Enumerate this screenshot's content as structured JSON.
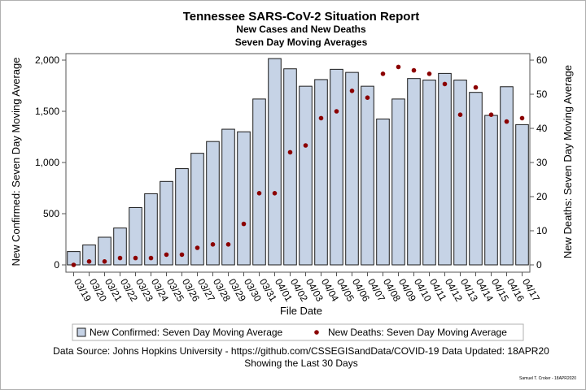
{
  "chart_data": {
    "type": "bar",
    "title": "Tennessee SARS-CoV-2 Situation Report",
    "subtitles": [
      "New Cases and New Deaths",
      "Seven Day Moving Averages"
    ],
    "xlabel": "File Date",
    "ylabel_left": "New Confirmed: Seven Day Moving Average",
    "ylabel_right": "New Deaths: Seven Day Moving Average",
    "ylim_left": [
      0,
      2000
    ],
    "ylim_right": [
      0,
      60
    ],
    "left_ticks": [
      0,
      500,
      1000,
      1500,
      2000
    ],
    "left_tick_labels": [
      "0",
      "500",
      "1,000",
      "1,500",
      "2,000"
    ],
    "right_ticks": [
      0,
      10,
      20,
      30,
      40,
      50,
      60
    ],
    "right_tick_labels": [
      "0",
      "10",
      "20",
      "30",
      "40",
      "50",
      "60"
    ],
    "categories": [
      "03/19",
      "03/20",
      "03/21",
      "03/22",
      "03/23",
      "03/24",
      "03/25",
      "03/26",
      "03/27",
      "03/28",
      "03/29",
      "03/30",
      "03/31",
      "04/01",
      "04/02",
      "04/03",
      "04/04",
      "04/05",
      "04/06",
      "04/07",
      "04/08",
      "04/09",
      "04/10",
      "04/11",
      "04/12",
      "04/13",
      "04/14",
      "04/15",
      "04/16",
      "04/17"
    ],
    "series": [
      {
        "name": "New Confirmed: Seven Day Moving Average",
        "type": "bar",
        "axis": "left",
        "values": [
          130,
          195,
          270,
          360,
          560,
          695,
          815,
          940,
          1090,
          1205,
          1325,
          1300,
          1620,
          2015,
          1915,
          1745,
          1810,
          1910,
          1880,
          1745,
          1425,
          1620,
          1820,
          1805,
          1870,
          1805,
          1685,
          1460,
          1740,
          1370
        ]
      },
      {
        "name": "New Deaths: Seven Day Moving Average",
        "type": "scatter",
        "axis": "right",
        "values": [
          0,
          1,
          1,
          2,
          2,
          2,
          3,
          3,
          5,
          6,
          6,
          12,
          21,
          21,
          33,
          35,
          43,
          45,
          51,
          49,
          56,
          58,
          57,
          56,
          53,
          44,
          52,
          44,
          42,
          43
        ]
      }
    ],
    "colors": {
      "bar_fill": "#c6d3e6",
      "bar_stroke": "#1a1a1a",
      "dot": "#8b0000"
    },
    "legend_position": "bottom",
    "footnotes": [
      "Data Source: Johns Hopkins University - https://github.com/CSSEGISandData/COVID-19 Data Updated: 18APR20",
      "Showing the Last 30 Days"
    ],
    "credit": "Samuel T. Croker - 18APR2020"
  }
}
